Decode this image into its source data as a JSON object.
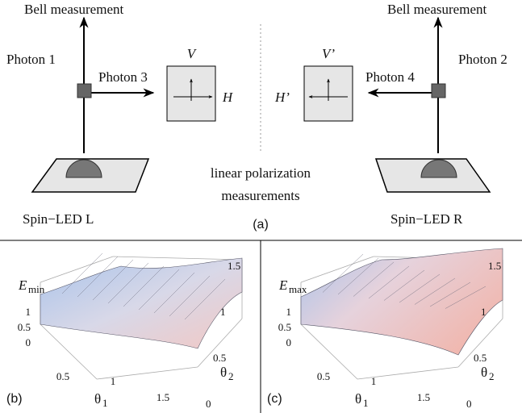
{
  "panel_a": {
    "label": "(a)",
    "left": {
      "bell": "Bell measurement",
      "photon_up": "Photon 1",
      "photon_side": "Photon 3",
      "v": "V",
      "h": "H",
      "source": "Spin−LED  L"
    },
    "right": {
      "bell": "Bell measurement",
      "photon_up": "Photon 2",
      "photon_side": "Photon 4",
      "v": "V’",
      "h": "H’",
      "source": "Spin−LED  R"
    },
    "center": [
      "linear polarization",
      "measurements"
    ]
  },
  "panel_b": {
    "label": "(b)",
    "z_label": "E",
    "z_sub": "min",
    "z_ticks": [
      "1",
      "0.5",
      "0"
    ],
    "x_label": "θ",
    "x_sub": "1",
    "x_ticks": [
      "0.5",
      "1",
      "1.5"
    ],
    "y_label": "θ",
    "y_sub": "2",
    "y_ticks": [
      "0",
      "0.5",
      "1",
      "1.5"
    ]
  },
  "panel_c": {
    "label": "(c)",
    "z_label": "E",
    "z_sub": "max",
    "z_ticks": [
      "1",
      "0.5",
      "0"
    ],
    "x_label": "θ",
    "x_sub": "1",
    "x_ticks": [
      "0.5",
      "1",
      "1.5"
    ],
    "y_label": "θ",
    "y_sub": "2",
    "y_ticks": [
      "0",
      "0.5",
      "1",
      "1.5"
    ]
  }
}
